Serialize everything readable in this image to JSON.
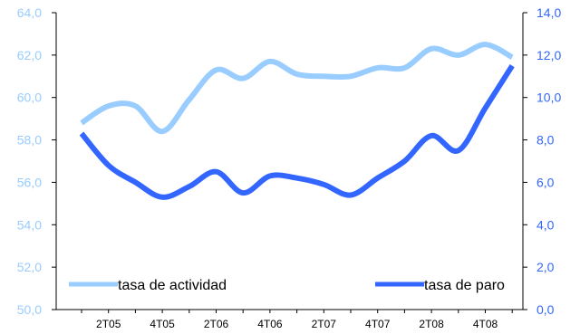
{
  "chart_data": {
    "type": "line",
    "title": "",
    "categories": [
      "1T05",
      "2T05",
      "3T05",
      "4T05",
      "1T06",
      "2T06",
      "3T06",
      "4T06",
      "1T07",
      "2T07",
      "3T07",
      "4T07",
      "1T08",
      "2T08",
      "3T08",
      "4T08",
      "1T09"
    ],
    "x_tick_labels": [
      "2T05",
      "4T05",
      "2T06",
      "4T06",
      "2T07",
      "4T07",
      "2T08",
      "4T08"
    ],
    "series": [
      {
        "name": "tasa de actividad",
        "axis": "left",
        "color": "#99ccff",
        "values": [
          58.8,
          59.6,
          59.6,
          58.4,
          59.9,
          61.3,
          60.9,
          61.7,
          61.1,
          61.0,
          61.0,
          61.4,
          61.4,
          62.3,
          62.0,
          62.5,
          61.9
        ]
      },
      {
        "name": "tasa de paro",
        "axis": "right",
        "color": "#3366ff",
        "values": [
          8.3,
          6.8,
          6.0,
          5.3,
          5.8,
          6.5,
          5.5,
          6.3,
          6.2,
          5.9,
          5.4,
          6.2,
          7.0,
          8.2,
          7.5,
          9.5,
          11.5
        ]
      }
    ],
    "y_left": {
      "ylim": [
        50,
        64
      ],
      "ticks": [
        "50,0",
        "52,0",
        "54,0",
        "56,0",
        "58,0",
        "60,0",
        "62,0",
        "64,0"
      ]
    },
    "y_right": {
      "ylim": [
        0,
        14
      ],
      "ticks": [
        "0,0",
        "2,0",
        "4,0",
        "6,0",
        "8,0",
        "10,0",
        "12,0",
        "14,0"
      ]
    },
    "legend_position": "bottom",
    "grid": false
  },
  "colors": {
    "tick_left": "#99ccff",
    "tick_right": "#3366ff",
    "axis": "#000000"
  }
}
